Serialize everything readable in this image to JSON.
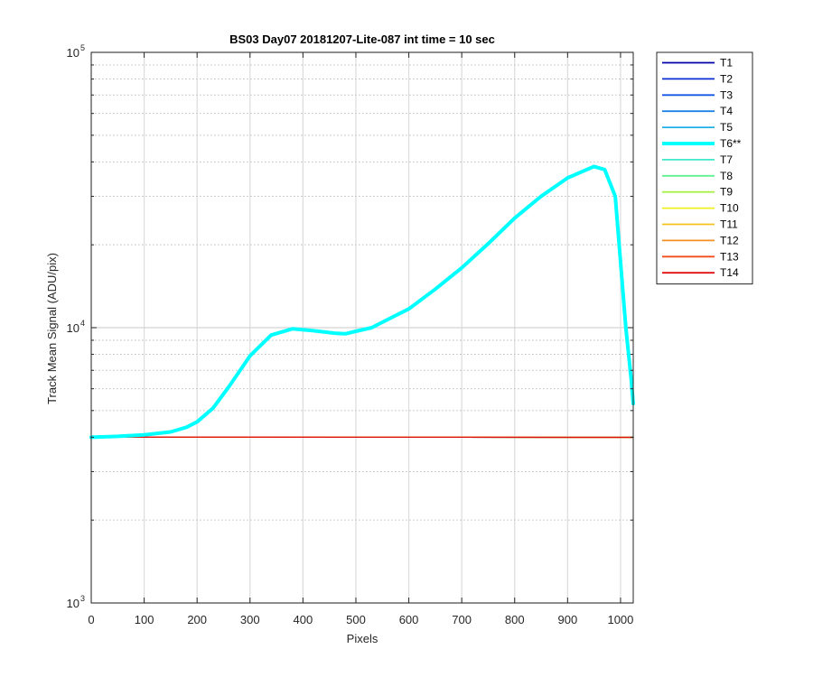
{
  "chart_data": {
    "type": "line",
    "title": "BS03 Day07 20181207-Lite-087 int time = 10 sec",
    "xlabel": "Pixels",
    "ylabel": "Track Mean Signal (ADU/pix)",
    "xlim": [
      0,
      1024
    ],
    "ylim": [
      1000,
      100000
    ],
    "yscale": "log",
    "x_ticks": [
      0,
      100,
      200,
      300,
      400,
      500,
      600,
      700,
      800,
      900,
      1000
    ],
    "y_ticks": [
      {
        "value": 1000,
        "base": "10",
        "exp": "3"
      },
      {
        "value": 10000,
        "base": "10",
        "exp": "4"
      },
      {
        "value": 100000,
        "base": "10",
        "exp": "5"
      }
    ],
    "grid": true,
    "legend_position": "outside-right",
    "series": [
      {
        "name": "T1",
        "color": "#0000a8",
        "width": 1.3,
        "x": [
          0,
          1024
        ],
        "y": [
          4005,
          3995
        ]
      },
      {
        "name": "T2",
        "color": "#0a2ed6",
        "width": 1.3,
        "x": [
          0,
          1024
        ],
        "y": [
          4005,
          3995
        ]
      },
      {
        "name": "T3",
        "color": "#1456e8",
        "width": 1.3,
        "x": [
          0,
          1024
        ],
        "y": [
          4005,
          3995
        ]
      },
      {
        "name": "T4",
        "color": "#1f80e8",
        "width": 1.3,
        "x": [
          0,
          1024
        ],
        "y": [
          4005,
          3995
        ]
      },
      {
        "name": "T5",
        "color": "#1fb0e8",
        "width": 1.3,
        "x": [
          0,
          1024
        ],
        "y": [
          4005,
          3995
        ]
      },
      {
        "name": "T6**",
        "color": "#00ffff",
        "width": 4,
        "highlight": true,
        "x": [
          0,
          50,
          100,
          150,
          180,
          200,
          230,
          260,
          300,
          340,
          380,
          420,
          460,
          480,
          500,
          530,
          560,
          600,
          650,
          700,
          750,
          800,
          850,
          900,
          950,
          970,
          990,
          1010,
          1020,
          1024
        ],
        "y": [
          4000,
          4030,
          4080,
          4180,
          4350,
          4550,
          5100,
          6100,
          7900,
          9400,
          9900,
          9750,
          9550,
          9500,
          9700,
          10000,
          10700,
          11700,
          13800,
          16500,
          20200,
          25000,
          30000,
          35000,
          38500,
          37500,
          30000,
          10000,
          6500,
          5300
        ]
      },
      {
        "name": "T7",
        "color": "#40e8c8",
        "width": 1.3,
        "x": [
          0,
          1024
        ],
        "y": [
          4005,
          3995
        ]
      },
      {
        "name": "T8",
        "color": "#60f090",
        "width": 1.3,
        "x": [
          0,
          1024
        ],
        "y": [
          4005,
          3995
        ]
      },
      {
        "name": "T9",
        "color": "#a8f048",
        "width": 1.3,
        "x": [
          0,
          1024
        ],
        "y": [
          4005,
          3995
        ]
      },
      {
        "name": "T10",
        "color": "#f0f020",
        "width": 1.3,
        "x": [
          0,
          1024
        ],
        "y": [
          4005,
          3995
        ]
      },
      {
        "name": "T11",
        "color": "#f5c21b",
        "width": 1.3,
        "x": [
          0,
          1024
        ],
        "y": [
          4005,
          3995
        ]
      },
      {
        "name": "T12",
        "color": "#f59020",
        "width": 1.3,
        "x": [
          0,
          1024
        ],
        "y": [
          4005,
          3995
        ]
      },
      {
        "name": "T13",
        "color": "#f54a1a",
        "width": 1.3,
        "x": [
          0,
          1024
        ],
        "y": [
          4005,
          3995
        ]
      },
      {
        "name": "T14",
        "color": "#e01010",
        "width": 1.3,
        "x": [
          0,
          1024
        ],
        "y": [
          4005,
          3995
        ]
      }
    ]
  }
}
